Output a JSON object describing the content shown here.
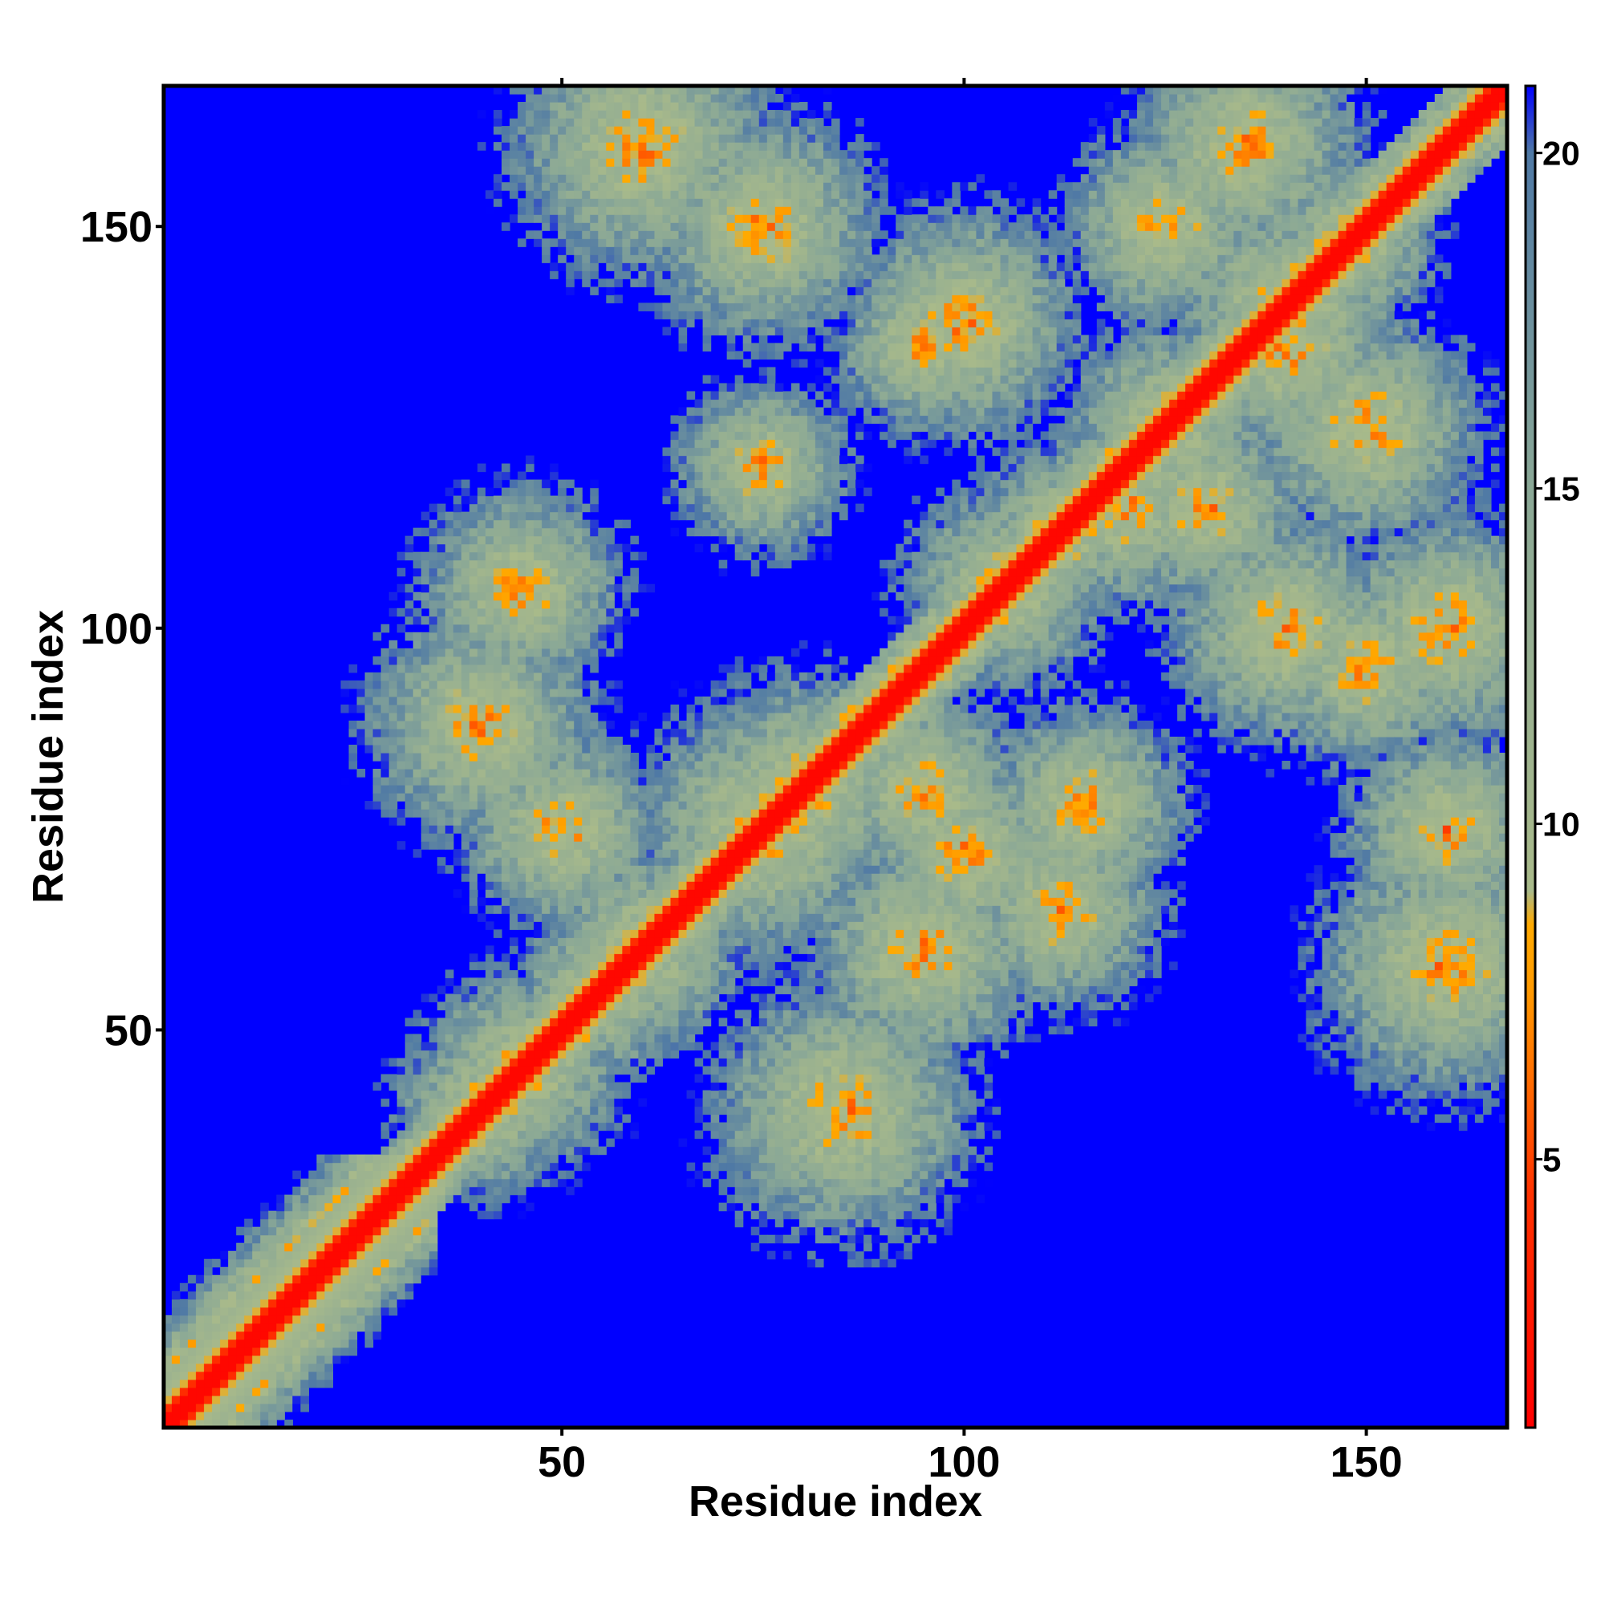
{
  "chart_data": {
    "type": "heatmap",
    "title": "",
    "xlabel": "Residue index",
    "ylabel": "Residue index",
    "n_residues": 167,
    "xlim": [
      0.5,
      167.5
    ],
    "ylim": [
      0.5,
      167.5
    ],
    "x_ticks": [
      50,
      100,
      150
    ],
    "y_ticks": [
      50,
      100,
      150
    ],
    "colorbar": {
      "range": [
        1,
        21
      ],
      "ticks": [
        5,
        10,
        15,
        20
      ],
      "stops": [
        {
          "value": 1,
          "color": "#ff0000"
        },
        {
          "value": 4.5,
          "color": "#ff3300"
        },
        {
          "value": 7.5,
          "color": "#ff9900"
        },
        {
          "value": 8.5,
          "color": "#ffaa00"
        },
        {
          "value": 9,
          "color": "#a9ba8a"
        },
        {
          "value": 15,
          "color": "#8aa896"
        },
        {
          "value": 20,
          "color": "#4f79a5"
        },
        {
          "value": 21,
          "color": "#0000ff"
        }
      ]
    },
    "background_color": "#0000ff",
    "description": "Symmetric-style residue contact/distance map: red diagonal band with orange/green contact patches, blue elsewhere."
  }
}
